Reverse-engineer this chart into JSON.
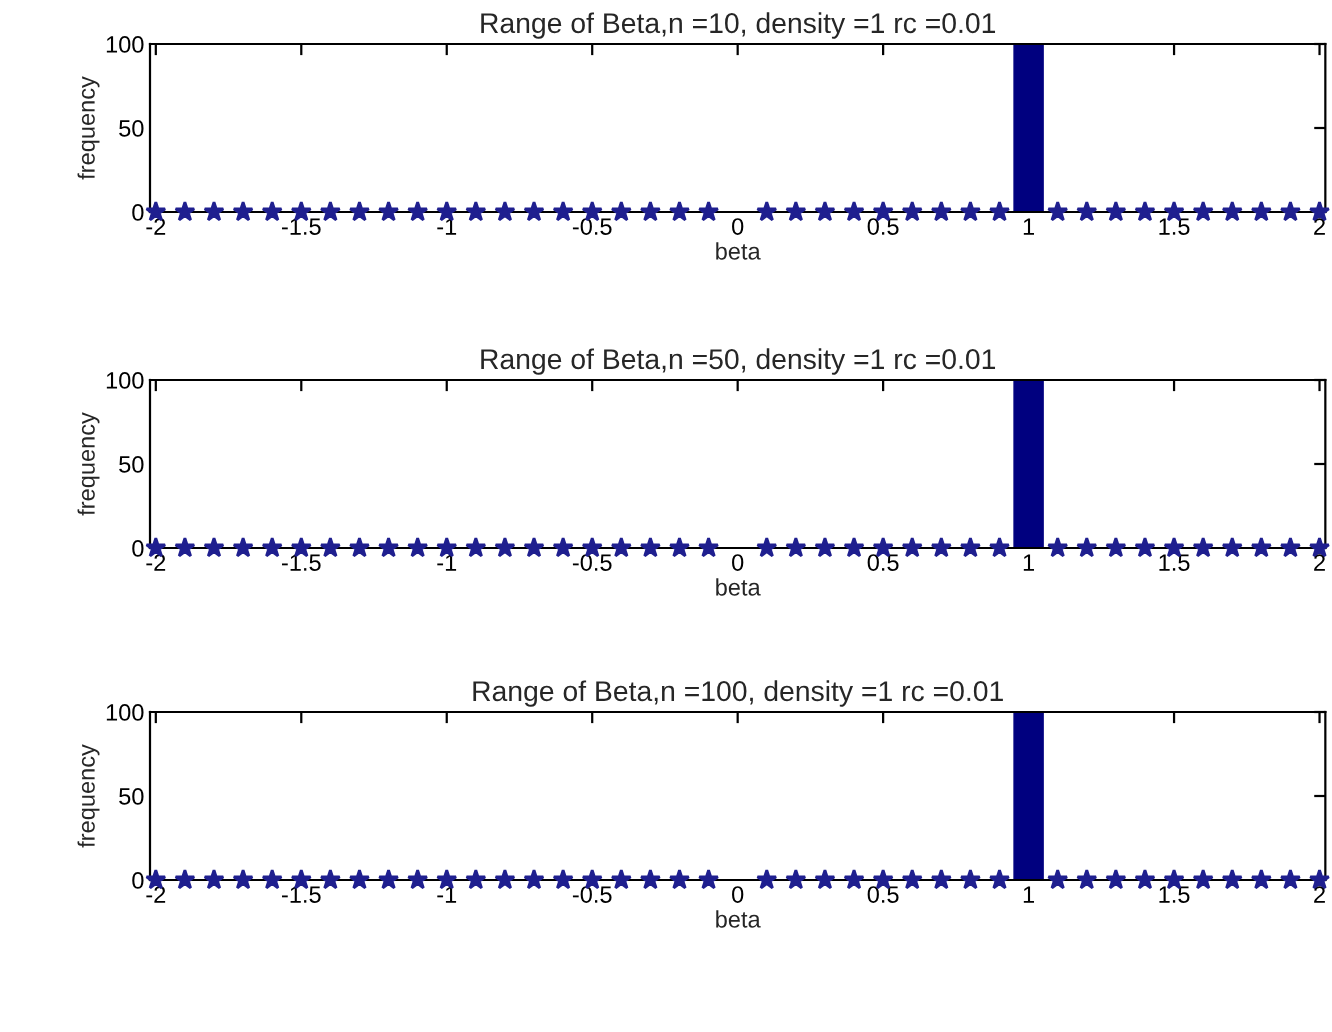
{
  "chart_data": [
    {
      "type": "histogram",
      "title": "Range of Beta,n =10, density =1 rc =0.01",
      "xlabel": "beta",
      "ylabel": "frequency",
      "bins": [
        -2.05,
        -1.95,
        -1.85,
        -1.75,
        -1.65,
        -1.55,
        -1.45,
        -1.35,
        -1.25,
        -1.15,
        -1.05,
        -0.95,
        -0.85,
        -0.75,
        -0.65,
        -0.55,
        -0.45,
        -0.35,
        -0.25,
        -0.15,
        -0.05,
        0.05,
        0.15,
        0.25,
        0.35,
        0.45,
        0.55,
        0.65,
        0.75,
        0.85,
        0.95,
        1.05,
        1.15,
        1.25,
        1.35,
        1.45,
        1.55,
        1.65,
        1.75,
        1.85,
        1.95,
        2.05
      ],
      "values": [
        0,
        0,
        0,
        0,
        0,
        0,
        0,
        0,
        0,
        0,
        0,
        0,
        0,
        0,
        0,
        0,
        0,
        0,
        0,
        0,
        0,
        0,
        0,
        0,
        0,
        0,
        0,
        0,
        0,
        0,
        100,
        0,
        0,
        0,
        0,
        0,
        0,
        0,
        0,
        0,
        0
      ],
      "color": "#00007f",
      "series": [
        {
          "type": "scatter",
          "color": "#1f1f8f",
          "x": [
            -2,
            -1.9,
            -1.8,
            -1.7,
            -1.6,
            -1.5,
            -1.4,
            -1.3,
            -1.2,
            -1.1,
            -1,
            -0.9,
            -0.8,
            -0.7,
            -0.6,
            -0.5,
            -0.4,
            -0.3,
            -0.2,
            -0.1,
            0.1,
            0.2,
            0.3,
            0.4,
            0.5,
            0.6,
            0.7,
            0.8,
            0.9,
            1.1,
            1.2,
            1.3,
            1.4,
            1.5,
            1.6,
            1.7,
            1.8,
            1.9,
            2
          ],
          "values": [
            0,
            0,
            0,
            0,
            0,
            0,
            0,
            0,
            0,
            0,
            0,
            0,
            0,
            0,
            0,
            0,
            0,
            0,
            0,
            0,
            0,
            0,
            0,
            0,
            0,
            0,
            0,
            0,
            0,
            0,
            0,
            0,
            0,
            0,
            0,
            0,
            0,
            0,
            0
          ]
        }
      ],
      "marker": "star",
      "xlim": [
        -2.02,
        2.02
      ],
      "ylim": [
        0,
        100
      ],
      "xticks": [
        -2,
        -1.5,
        -1,
        -0.5,
        0,
        0.5,
        1,
        1.5,
        2
      ],
      "yticks": [
        0,
        50,
        100
      ],
      "grid": false,
      "legend": false
    },
    {
      "type": "histogram",
      "title": "Range of Beta,n =50, density =1 rc =0.01",
      "xlabel": "beta",
      "ylabel": "frequency",
      "bins": [
        -2.05,
        -1.95,
        -1.85,
        -1.75,
        -1.65,
        -1.55,
        -1.45,
        -1.35,
        -1.25,
        -1.15,
        -1.05,
        -0.95,
        -0.85,
        -0.75,
        -0.65,
        -0.55,
        -0.45,
        -0.35,
        -0.25,
        -0.15,
        -0.05,
        0.05,
        0.15,
        0.25,
        0.35,
        0.45,
        0.55,
        0.65,
        0.75,
        0.85,
        0.95,
        1.05,
        1.15,
        1.25,
        1.35,
        1.45,
        1.55,
        1.65,
        1.75,
        1.85,
        1.95,
        2.05
      ],
      "values": [
        0,
        0,
        0,
        0,
        0,
        0,
        0,
        0,
        0,
        0,
        0,
        0,
        0,
        0,
        0,
        0,
        0,
        0,
        0,
        0,
        0,
        0,
        0,
        0,
        0,
        0,
        0,
        0,
        0,
        0,
        100,
        0,
        0,
        0,
        0,
        0,
        0,
        0,
        0,
        0,
        0
      ],
      "color": "#00007f",
      "series": [
        {
          "type": "scatter",
          "color": "#1f1f8f",
          "x": [
            -2,
            -1.9,
            -1.8,
            -1.7,
            -1.6,
            -1.5,
            -1.4,
            -1.3,
            -1.2,
            -1.1,
            -1,
            -0.9,
            -0.8,
            -0.7,
            -0.6,
            -0.5,
            -0.4,
            -0.3,
            -0.2,
            -0.1,
            0.1,
            0.2,
            0.3,
            0.4,
            0.5,
            0.6,
            0.7,
            0.8,
            0.9,
            1.1,
            1.2,
            1.3,
            1.4,
            1.5,
            1.6,
            1.7,
            1.8,
            1.9,
            2
          ],
          "values": [
            0,
            0,
            0,
            0,
            0,
            0,
            0,
            0,
            0,
            0,
            0,
            0,
            0,
            0,
            0,
            0,
            0,
            0,
            0,
            0,
            0,
            0,
            0,
            0,
            0,
            0,
            0,
            0,
            0,
            0,
            0,
            0,
            0,
            0,
            0,
            0,
            0,
            0,
            0
          ]
        }
      ],
      "marker": "star",
      "xlim": [
        -2.02,
        2.02
      ],
      "ylim": [
        0,
        100
      ],
      "xticks": [
        -2,
        -1.5,
        -1,
        -0.5,
        0,
        0.5,
        1,
        1.5,
        2
      ],
      "yticks": [
        0,
        50,
        100
      ],
      "grid": false,
      "legend": false
    },
    {
      "type": "histogram",
      "title": "Range of Beta,n =100, density =1 rc =0.01",
      "xlabel": "beta",
      "ylabel": "frequency",
      "bins": [
        -2.05,
        -1.95,
        -1.85,
        -1.75,
        -1.65,
        -1.55,
        -1.45,
        -1.35,
        -1.25,
        -1.15,
        -1.05,
        -0.95,
        -0.85,
        -0.75,
        -0.65,
        -0.55,
        -0.45,
        -0.35,
        -0.25,
        -0.15,
        -0.05,
        0.05,
        0.15,
        0.25,
        0.35,
        0.45,
        0.55,
        0.65,
        0.75,
        0.85,
        0.95,
        1.05,
        1.15,
        1.25,
        1.35,
        1.45,
        1.55,
        1.65,
        1.75,
        1.85,
        1.95,
        2.05
      ],
      "values": [
        0,
        0,
        0,
        0,
        0,
        0,
        0,
        0,
        0,
        0,
        0,
        0,
        0,
        0,
        0,
        0,
        0,
        0,
        0,
        0,
        0,
        0,
        0,
        0,
        0,
        0,
        0,
        0,
        0,
        0,
        100,
        0,
        0,
        0,
        0,
        0,
        0,
        0,
        0,
        0,
        0
      ],
      "color": "#00007f",
      "series": [
        {
          "type": "scatter",
          "color": "#1f1f8f",
          "x": [
            -2,
            -1.9,
            -1.8,
            -1.7,
            -1.6,
            -1.5,
            -1.4,
            -1.3,
            -1.2,
            -1.1,
            -1,
            -0.9,
            -0.8,
            -0.7,
            -0.6,
            -0.5,
            -0.4,
            -0.3,
            -0.2,
            -0.1,
            0.1,
            0.2,
            0.3,
            0.4,
            0.5,
            0.6,
            0.7,
            0.8,
            0.9,
            1.1,
            1.2,
            1.3,
            1.4,
            1.5,
            1.6,
            1.7,
            1.8,
            1.9,
            2
          ],
          "values": [
            0,
            0,
            0,
            0,
            0,
            0,
            0,
            0,
            0,
            0,
            0,
            0,
            0,
            0,
            0,
            0,
            0,
            0,
            0,
            0,
            0,
            0,
            0,
            0,
            0,
            0,
            0,
            0,
            0,
            0,
            0,
            0,
            0,
            0,
            0,
            0,
            0,
            0,
            0
          ]
        }
      ],
      "marker": "star",
      "xlim": [
        -2.02,
        2.02
      ],
      "ylim": [
        0,
        100
      ],
      "xticks": [
        -2,
        -1.5,
        -1,
        -0.5,
        0,
        0.5,
        1,
        1.5,
        2
      ],
      "yticks": [
        0,
        50,
        100
      ],
      "grid": false,
      "legend": false
    }
  ]
}
